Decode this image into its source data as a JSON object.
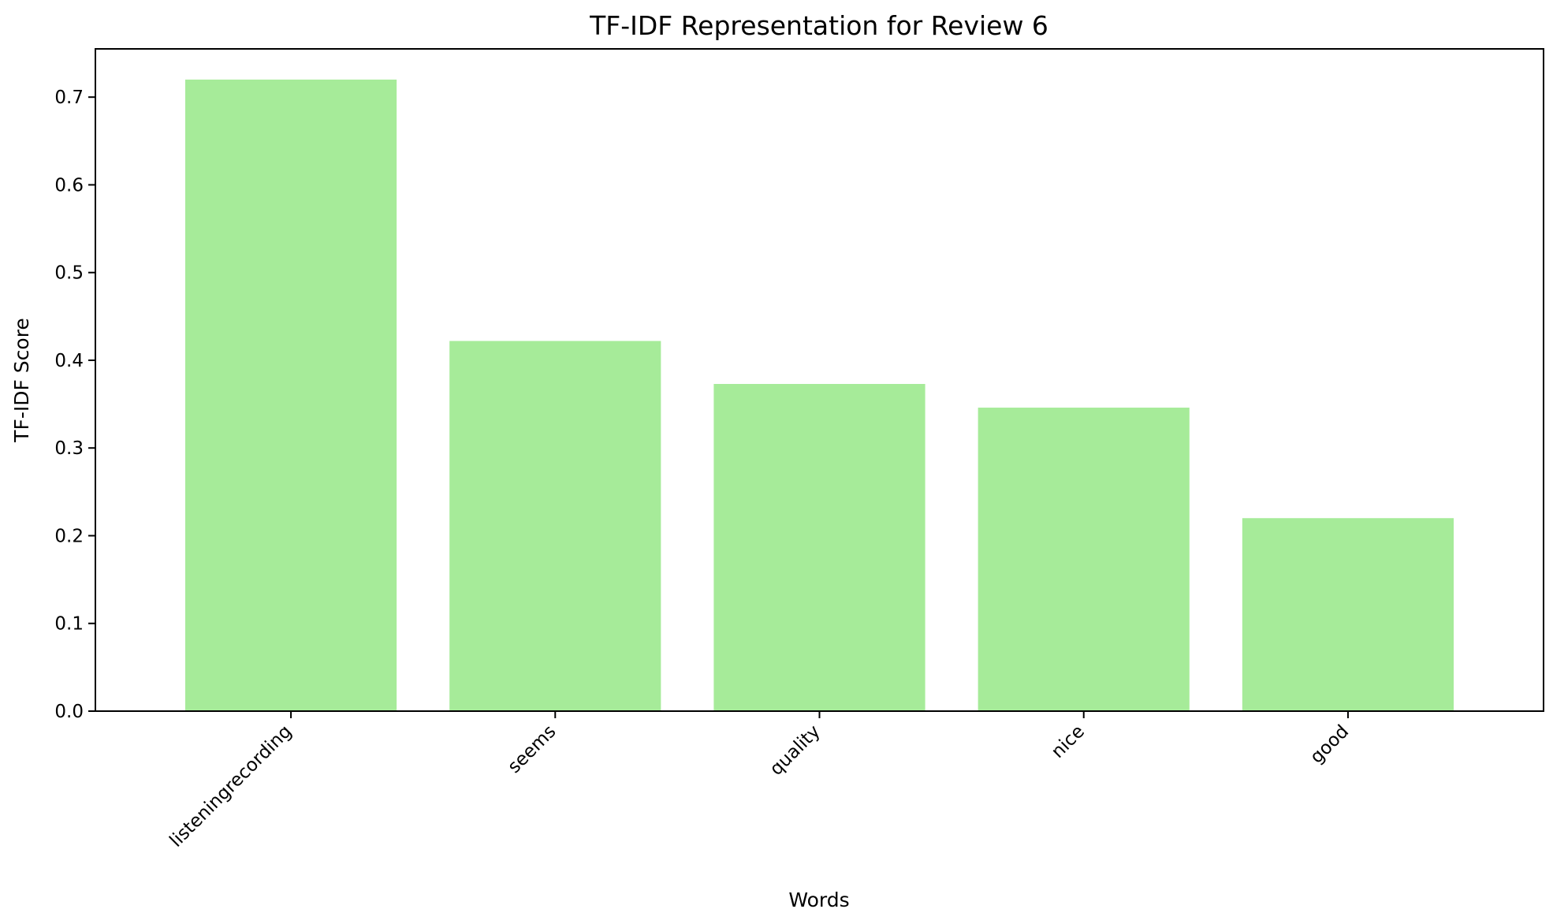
{
  "chart_data": {
    "type": "bar",
    "title": "TF-IDF Representation for Review 6",
    "xlabel": "Words",
    "ylabel": "TF-IDF Score",
    "categories": [
      "listeningrecording",
      "seems",
      "quality",
      "nice",
      "good"
    ],
    "values": [
      0.72,
      0.422,
      0.373,
      0.346,
      0.22
    ],
    "ylim": [
      0,
      0.755
    ],
    "yticks": [
      "0.0",
      "0.1",
      "0.2",
      "0.3",
      "0.4",
      "0.5",
      "0.6",
      "0.7"
    ],
    "bar_color": "#a6eb99",
    "grid": false,
    "legend": "none"
  }
}
